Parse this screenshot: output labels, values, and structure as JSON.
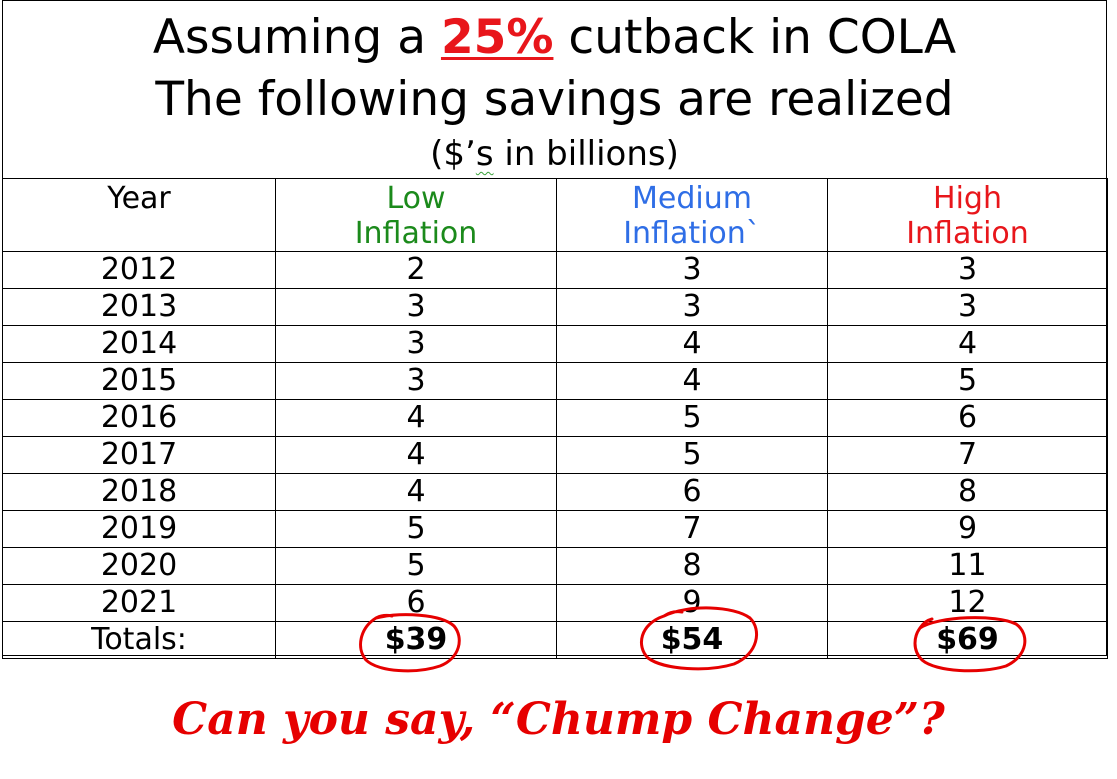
{
  "title": {
    "line1_prefix": "Assuming a ",
    "line1_highlight": "25%",
    "line1_suffix": " cutback in COLA",
    "line2": "The following savings are realized",
    "line3_prefix": "($’",
    "line3_squiggle": "s",
    "line3_suffix": " in billions)"
  },
  "table": {
    "headers": {
      "year": "Year",
      "low_line1": "Low",
      "low_line2": "Inflation",
      "medium_line1": "Medium",
      "medium_line2": "Inflation`",
      "high_line1": "High",
      "high_line2": "Inflation"
    },
    "rows": [
      {
        "year": "2012",
        "low": "2",
        "medium": "3",
        "high": "3"
      },
      {
        "year": "2013",
        "low": "3",
        "medium": "3",
        "high": "3"
      },
      {
        "year": "2014",
        "low": "3",
        "medium": "4",
        "high": "4"
      },
      {
        "year": "2015",
        "low": "3",
        "medium": "4",
        "high": "5"
      },
      {
        "year": "2016",
        "low": "4",
        "medium": "5",
        "high": "6"
      },
      {
        "year": "2017",
        "low": "4",
        "medium": "5",
        "high": "7"
      },
      {
        "year": "2018",
        "low": "4",
        "medium": "6",
        "high": "8"
      },
      {
        "year": "2019",
        "low": "5",
        "medium": "7",
        "high": "9"
      },
      {
        "year": "2020",
        "low": "5",
        "medium": "8",
        "high": "11"
      },
      {
        "year": "2021",
        "low": "6",
        "medium": "9",
        "high": "12"
      }
    ],
    "totals": {
      "label": "Totals:",
      "low": "$39",
      "medium": "$54",
      "high": "$69"
    }
  },
  "tagline": "Can you say, “Chump Change”?",
  "colors": {
    "low": "#1b8a1b",
    "medium": "#2f6ee6",
    "high": "#e8161b",
    "highlight": "#e8161b",
    "circle": "#e60000",
    "tagline": "#e60000"
  }
}
